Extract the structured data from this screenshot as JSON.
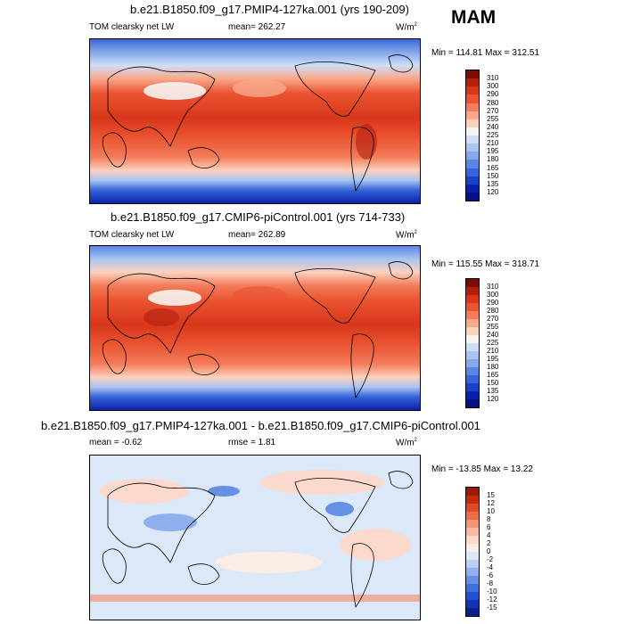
{
  "season": "MAM",
  "panels": [
    {
      "title": "b.e21.B1850.f09_g17.PMIP4-127ka.001 (yrs 190-209)",
      "left_label": "TOM clearsky net LW",
      "stat": "mean= 262.27",
      "stat2": "",
      "units": "W/m",
      "units_sup": "2",
      "minmax": "Min = 114.81 Max = 312.51",
      "colorbar_levels": [
        "310",
        "300",
        "290",
        "280",
        "270",
        "255",
        "240",
        "225",
        "210",
        "195",
        "180",
        "165",
        "150",
        "135",
        "120"
      ],
      "colorbar_colors": [
        "#7a0e04",
        "#b2200b",
        "#d7361a",
        "#ea5431",
        "#f37d5b",
        "#f9a88a",
        "#fcd1bd",
        "#f6f3f1",
        "#cfdef7",
        "#a9c4f1",
        "#84a8ea",
        "#5a85e2",
        "#3564d8",
        "#1a40c8",
        "#0b20a8",
        "#061080"
      ]
    },
    {
      "title": "b.e21.B1850.f09_g17.CMIP6-piControl.001 (yrs 714-733)",
      "left_label": "TOM clearsky net LW",
      "stat": "mean= 262.89",
      "stat2": "",
      "units": "W/m",
      "units_sup": "2",
      "minmax": "Min = 115.55 Max = 318.71",
      "colorbar_levels": [
        "310",
        "300",
        "290",
        "280",
        "270",
        "255",
        "240",
        "225",
        "210",
        "195",
        "180",
        "165",
        "150",
        "135",
        "120"
      ],
      "colorbar_colors": [
        "#7a0e04",
        "#b2200b",
        "#d7361a",
        "#ea5431",
        "#f37d5b",
        "#f9a88a",
        "#fcd1bd",
        "#f6f3f1",
        "#cfdef7",
        "#a9c4f1",
        "#84a8ea",
        "#5a85e2",
        "#3564d8",
        "#1a40c8",
        "#0b20a8",
        "#061080"
      ]
    },
    {
      "title": "b.e21.B1850.f09_g17.PMIP4-127ka.001 - b.e21.B1850.f09_g17.CMIP6-piControl.001",
      "left_label": "mean =  -0.62",
      "stat": "rmse =  1.81",
      "stat2": "",
      "units": "W/m",
      "units_sup": "2",
      "minmax": "Min = -13.85 Max =  13.22",
      "colorbar_levels": [
        "15",
        "12",
        "10",
        "8",
        "6",
        "4",
        "2",
        "0",
        "-2",
        "-4",
        "-6",
        "-8",
        "-10",
        "-12",
        "-15"
      ],
      "colorbar_colors": [
        "#9b1a06",
        "#c52a10",
        "#de4a26",
        "#ec6e48",
        "#f4957a",
        "#f8b9a3",
        "#fbd9cc",
        "#fbece5",
        "#dbe8f8",
        "#b9d0f3",
        "#8fb0ec",
        "#6690e4",
        "#3f6fdb",
        "#2350cf",
        "#1233b8",
        "#0b1f8f"
      ]
    }
  ],
  "chart_data": [
    {
      "type": "heatmap",
      "title": "b.e21.B1850.f09_g17.PMIP4-127ka.001 (yrs 190-209)",
      "variable": "TOM clearsky net LW",
      "season": "MAM",
      "mean": 262.27,
      "units": "W/m2",
      "min": 114.81,
      "max": 312.51,
      "levels": [
        120,
        135,
        150,
        165,
        180,
        195,
        210,
        225,
        240,
        255,
        270,
        280,
        290,
        300,
        310
      ]
    },
    {
      "type": "heatmap",
      "title": "b.e21.B1850.f09_g17.CMIP6-piControl.001 (yrs 714-733)",
      "variable": "TOM clearsky net LW",
      "season": "MAM",
      "mean": 262.89,
      "units": "W/m2",
      "min": 115.55,
      "max": 318.71,
      "levels": [
        120,
        135,
        150,
        165,
        180,
        195,
        210,
        225,
        240,
        255,
        270,
        280,
        290,
        300,
        310
      ]
    },
    {
      "type": "heatmap",
      "title": "b.e21.B1850.f09_g17.PMIP4-127ka.001 - b.e21.B1850.f09_g17.CMIP6-piControl.001",
      "variable": "difference",
      "season": "MAM",
      "mean": -0.62,
      "rmse": 1.81,
      "units": "W/m2",
      "min": -13.85,
      "max": 13.22,
      "levels": [
        -15,
        -12,
        -10,
        -8,
        -6,
        -4,
        -2,
        0,
        2,
        4,
        6,
        8,
        10,
        12,
        15
      ]
    }
  ]
}
